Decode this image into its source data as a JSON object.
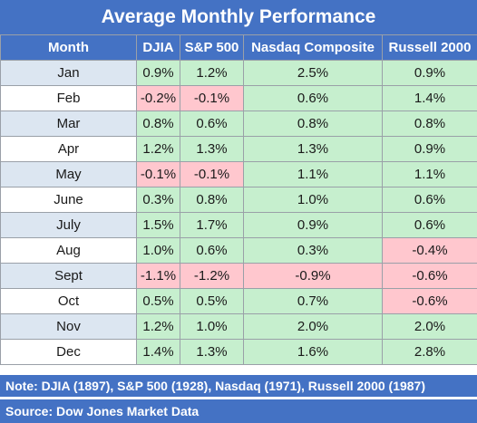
{
  "title": "Average Monthly Performance",
  "headers": [
    "Month",
    "DJIA",
    "S&P 500",
    "Nasdaq Composite",
    "Russell 2000"
  ],
  "rows": [
    {
      "month": "Jan",
      "values": [
        "0.9%",
        "1.2%",
        "2.5%",
        "0.9%"
      ]
    },
    {
      "month": "Feb",
      "values": [
        "-0.2%",
        "-0.1%",
        "0.6%",
        "1.4%"
      ]
    },
    {
      "month": "Mar",
      "values": [
        "0.8%",
        "0.6%",
        "0.8%",
        "0.8%"
      ]
    },
    {
      "month": "Apr",
      "values": [
        "1.2%",
        "1.3%",
        "1.3%",
        "0.9%"
      ]
    },
    {
      "month": "May",
      "values": [
        "-0.1%",
        "-0.1%",
        "1.1%",
        "1.1%"
      ]
    },
    {
      "month": "June",
      "values": [
        "0.3%",
        "0.8%",
        "1.0%",
        "0.6%"
      ]
    },
    {
      "month": "July",
      "values": [
        "1.5%",
        "1.7%",
        "0.9%",
        "0.6%"
      ]
    },
    {
      "month": "Aug",
      "values": [
        "1.0%",
        "0.6%",
        "0.3%",
        "-0.4%"
      ]
    },
    {
      "month": "Sept",
      "values": [
        "-1.1%",
        "-1.2%",
        "-0.9%",
        "-0.6%"
      ]
    },
    {
      "month": "Oct",
      "values": [
        "0.5%",
        "0.5%",
        "0.7%",
        "-0.6%"
      ]
    },
    {
      "month": "Nov",
      "values": [
        "1.2%",
        "1.0%",
        "2.0%",
        "2.0%"
      ]
    },
    {
      "month": "Dec",
      "values": [
        "1.4%",
        "1.3%",
        "1.6%",
        "2.8%"
      ]
    }
  ],
  "note": "Note: DJIA (1897), S&P 500 (1928), Nasdaq (1971), Russell 2000 (1987)",
  "source": "Source: Dow Jones Market Data",
  "colors": {
    "header": "#4472c4",
    "positive": "#c6efce",
    "negative": "#ffc7ce",
    "month_shade": "#dce6f1"
  }
}
